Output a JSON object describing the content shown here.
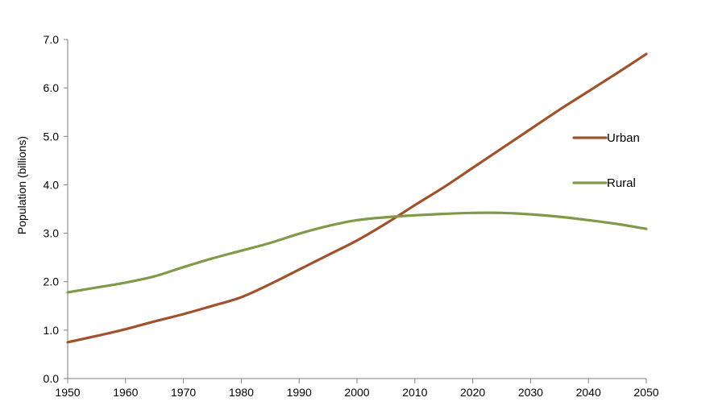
{
  "chart_data": {
    "type": "line",
    "title": "",
    "xlabel": "",
    "ylabel": "Population (billions)",
    "xlim": [
      1950,
      2050
    ],
    "ylim": [
      0,
      7
    ],
    "x_ticks": [
      "1950",
      "1960",
      "1970",
      "1980",
      "1990",
      "2000",
      "2010",
      "2020",
      "2030",
      "2040",
      "2050"
    ],
    "y_ticks": [
      "0.0",
      "1.0",
      "2.0",
      "3.0",
      "4.0",
      "5.0",
      "6.0",
      "7.0"
    ],
    "grid": false,
    "legend_position": "right",
    "x": [
      1950,
      1955,
      1960,
      1965,
      1970,
      1975,
      1980,
      1985,
      1990,
      1995,
      2000,
      2005,
      2010,
      2015,
      2020,
      2025,
      2030,
      2035,
      2040,
      2045,
      2050
    ],
    "series": [
      {
        "name": "Urban",
        "color": "#a0522d",
        "values": [
          0.75,
          0.88,
          1.02,
          1.18,
          1.33,
          1.5,
          1.68,
          1.95,
          2.25,
          2.55,
          2.85,
          3.2,
          3.58,
          3.95,
          4.35,
          4.75,
          5.15,
          5.55,
          5.93,
          6.31,
          6.7
        ]
      },
      {
        "name": "Rural",
        "color": "#7f9a48",
        "values": [
          1.78,
          1.88,
          1.98,
          2.11,
          2.3,
          2.48,
          2.64,
          2.8,
          2.99,
          3.15,
          3.27,
          3.33,
          3.37,
          3.4,
          3.42,
          3.42,
          3.39,
          3.34,
          3.27,
          3.19,
          3.09
        ]
      }
    ]
  }
}
